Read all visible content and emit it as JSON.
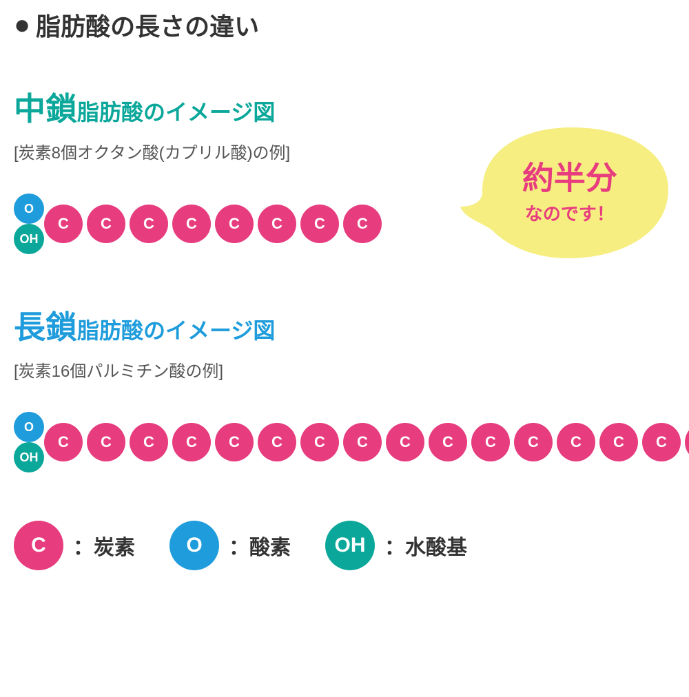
{
  "colors": {
    "text": "#333333",
    "gray_sub": "#555555",
    "carbon": "#e73c7e",
    "oxygen": "#1e9cdb",
    "hydroxyl": "#0aa79a",
    "medium_title": "#0aa79a",
    "long_title": "#1e9cdb",
    "bubble_fill": "#f6ee81",
    "bubble_text": "#e73c7e",
    "background": "#ffffff"
  },
  "title": {
    "bullet": "●",
    "text": "脂肪酸の長さの違い",
    "fontsize": 36
  },
  "medium_chain": {
    "title_big": "中鎖",
    "title_rest": "脂肪酸のイメージ図",
    "subtitle": "[炭素8個オクタン酸(カプリル酸)の例]",
    "carbon_count": 8,
    "oxygen_label": "O",
    "hydroxyl_label": "OH",
    "carbon_label": "C"
  },
  "long_chain": {
    "title_big": "長鎖",
    "title_rest": "脂肪酸のイメージ図",
    "subtitle": "[炭素16個パルミチン酸の例]",
    "carbon_count": 16,
    "oxygen_label": "O",
    "hydroxyl_label": "OH",
    "carbon_label": "C"
  },
  "bubble": {
    "big": "約半分",
    "small": "なのです！"
  },
  "legend": {
    "carbon": {
      "symbol": "C",
      "label": "：炭素"
    },
    "oxygen": {
      "symbol": "O",
      "label": "：酸素"
    },
    "hydroxyl": {
      "symbol": "OH",
      "label": "：水酸基"
    }
  }
}
